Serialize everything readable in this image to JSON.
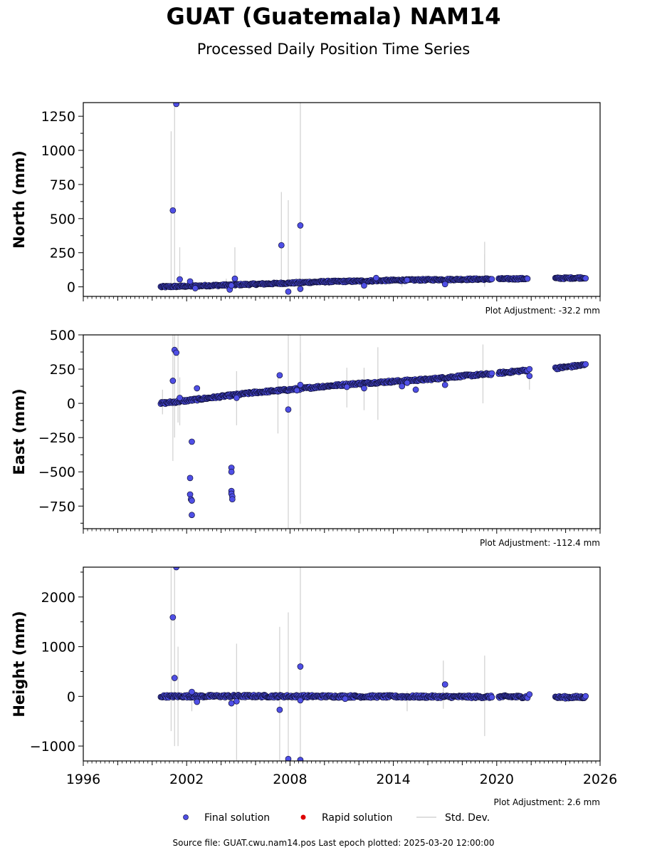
{
  "header": {
    "title": "GUAT (Guatemala) NAM14",
    "subtitle": "Processed Daily Position Time Series"
  },
  "footer": {
    "source": "Source file: GUAT.cwu.nam14.pos  Last epoch plotted: 2025-03-20 12:00:00"
  },
  "legend": {
    "final": "Final solution",
    "rapid": "Rapid solution",
    "std": "Std. Dev."
  },
  "colors": {
    "final_fill": "#4f4fe6",
    "final_edge": "#10103a",
    "rapid": "#dd0000",
    "std_dev": "#d3d3d3"
  },
  "chart_data": [
    {
      "type": "scatter",
      "ylabel": "North (mm)",
      "adjustment": "Plot Adjustment: -32.2 mm",
      "xlim": [
        1996,
        2026
      ],
      "ylim": [
        -70,
        1350
      ],
      "yticks": [
        0,
        250,
        500,
        750,
        1000,
        1250
      ],
      "ytick_labels": [
        "0",
        "250",
        "500",
        "750",
        "1000",
        "1250"
      ],
      "trend": [
        [
          2000.5,
          0
        ],
        [
          2002.0,
          5
        ],
        [
          2004.0,
          12
        ],
        [
          2006.0,
          20
        ],
        [
          2008.0,
          28
        ],
        [
          2010.0,
          38
        ],
        [
          2012.0,
          42
        ],
        [
          2014.0,
          48
        ],
        [
          2016.0,
          52
        ],
        [
          2018.0,
          55
        ],
        [
          2019.7,
          57
        ],
        [
          2020.2,
          58
        ],
        [
          2021.6,
          60
        ],
        [
          2023.3,
          62
        ],
        [
          2025.2,
          67
        ]
      ],
      "gaps": [
        [
          2019.75,
          2020.1
        ],
        [
          2021.8,
          2023.4
        ]
      ],
      "jitter": 6,
      "outliers": [
        [
          2001.2,
          560
        ],
        [
          2001.4,
          1340
        ],
        [
          2001.6,
          55
        ],
        [
          2002.2,
          40
        ],
        [
          2002.5,
          -10
        ],
        [
          2004.5,
          -20
        ],
        [
          2004.6,
          10
        ],
        [
          2004.8,
          60
        ],
        [
          2007.5,
          305
        ],
        [
          2007.9,
          -35
        ],
        [
          2008.6,
          450
        ],
        [
          2008.6,
          -15
        ],
        [
          2012.3,
          10
        ],
        [
          2013.0,
          65
        ],
        [
          2014.8,
          50
        ],
        [
          2017.0,
          20
        ]
      ],
      "errorbars": [
        [
          2001.1,
          0,
          1140
        ],
        [
          2001.3,
          0,
          1350
        ],
        [
          2001.6,
          0,
          290
        ],
        [
          2004.8,
          0,
          290
        ],
        [
          2007.5,
          0,
          695
        ],
        [
          2007.9,
          0,
          635
        ],
        [
          2008.6,
          0,
          1350
        ],
        [
          2019.3,
          0,
          330
        ],
        [
          2019.3,
          0,
          240
        ],
        [
          2004.3,
          0,
          60
        ],
        [
          2014.5,
          0,
          80
        ]
      ]
    },
    {
      "type": "scatter",
      "ylabel": "East (mm)",
      "adjustment": "Plot Adjustment: -112.4 mm",
      "xlim": [
        1996,
        2026
      ],
      "ylim": [
        -915,
        500
      ],
      "yticks": [
        -750,
        -500,
        -250,
        0,
        250,
        500
      ],
      "ytick_labels": [
        "−750",
        "−500",
        "−250",
        "0",
        "250",
        "500"
      ],
      "trend": [
        [
          2000.5,
          0
        ],
        [
          2002.0,
          20
        ],
        [
          2004.0,
          50
        ],
        [
          2006.0,
          80
        ],
        [
          2008.0,
          100
        ],
        [
          2010.0,
          125
        ],
        [
          2012.0,
          145
        ],
        [
          2014.0,
          160
        ],
        [
          2016.0,
          175
        ],
        [
          2018.0,
          200
        ],
        [
          2019.7,
          215
        ],
        [
          2020.2,
          222
        ],
        [
          2021.6,
          240
        ],
        [
          2023.3,
          255
        ],
        [
          2025.2,
          282
        ]
      ],
      "gaps": [
        [
          2019.75,
          2020.1
        ],
        [
          2021.8,
          2023.4
        ]
      ],
      "jitter": 8,
      "outliers": [
        [
          2001.2,
          165
        ],
        [
          2001.3,
          390
        ],
        [
          2001.4,
          370
        ],
        [
          2001.6,
          40
        ],
        [
          2002.3,
          -280
        ],
        [
          2002.2,
          -545
        ],
        [
          2002.2,
          -665
        ],
        [
          2002.25,
          -700
        ],
        [
          2002.3,
          -710
        ],
        [
          2002.3,
          -815
        ],
        [
          2002.6,
          110
        ],
        [
          2004.6,
          -470
        ],
        [
          2004.6,
          -500
        ],
        [
          2004.6,
          -640
        ],
        [
          2004.6,
          -660
        ],
        [
          2004.65,
          -680
        ],
        [
          2004.65,
          -700
        ],
        [
          2004.9,
          40
        ],
        [
          2007.4,
          205
        ],
        [
          2007.9,
          -45
        ],
        [
          2008.6,
          135
        ],
        [
          2008.4,
          95
        ],
        [
          2011.3,
          120
        ],
        [
          2012.3,
          110
        ],
        [
          2014.5,
          125
        ],
        [
          2014.8,
          150
        ],
        [
          2015.3,
          100
        ],
        [
          2017.0,
          135
        ],
        [
          2021.9,
          200
        ],
        [
          2021.9,
          250
        ]
      ],
      "errorbars": [
        [
          2001.2,
          -420,
          500
        ],
        [
          2001.3,
          -250,
          500
        ],
        [
          2001.5,
          -140,
          500
        ],
        [
          2001.6,
          -160,
          190
        ],
        [
          2004.9,
          -160,
          235
        ],
        [
          2007.3,
          -220,
          220
        ],
        [
          2007.9,
          -915,
          500
        ],
        [
          2008.6,
          -880,
          500
        ],
        [
          2008.6,
          -90,
          370
        ],
        [
          2011.3,
          -30,
          260
        ],
        [
          2012.3,
          -50,
          260
        ],
        [
          2013.1,
          -120,
          410
        ],
        [
          2019.2,
          0,
          430
        ],
        [
          2021.9,
          100,
          250
        ],
        [
          2000.6,
          -80,
          100
        ]
      ]
    },
    {
      "type": "scatter",
      "ylabel": "Height (mm)",
      "adjustment": "Plot Adjustment: 2.6 mm",
      "xlim": [
        1996,
        2026
      ],
      "ylim": [
        -1300,
        2600
      ],
      "yticks": [
        -1000,
        0,
        1000,
        2000
      ],
      "ytick_labels": [
        "−1000",
        "0",
        "1000",
        "2000"
      ],
      "xticks": [
        1996,
        2002,
        2008,
        2014,
        2020,
        2026
      ],
      "xtick_labels": [
        "1996",
        "2002",
        "2008",
        "2014",
        "2020",
        "2026"
      ],
      "trend": [
        [
          2000.5,
          0
        ],
        [
          2005.0,
          5
        ],
        [
          2010.0,
          0
        ],
        [
          2015.0,
          -5
        ],
        [
          2019.7,
          -10
        ],
        [
          2020.2,
          -5
        ],
        [
          2021.6,
          -10
        ],
        [
          2023.3,
          -20
        ],
        [
          2025.2,
          -15
        ]
      ],
      "gaps": [
        [
          2019.75,
          2020.1
        ],
        [
          2021.8,
          2023.4
        ]
      ],
      "jitter": 25,
      "outliers": [
        [
          2001.2,
          1590
        ],
        [
          2001.3,
          370
        ],
        [
          2001.4,
          2600
        ],
        [
          2002.3,
          90
        ],
        [
          2002.6,
          -110
        ],
        [
          2004.6,
          -140
        ],
        [
          2004.9,
          -100
        ],
        [
          2007.4,
          -270
        ],
        [
          2007.9,
          -1260
        ],
        [
          2008.6,
          600
        ],
        [
          2008.6,
          -80
        ],
        [
          2008.6,
          -1280
        ],
        [
          2017.0,
          240
        ],
        [
          2021.9,
          40
        ],
        [
          2011.2,
          -50
        ]
      ],
      "errorbars": [
        [
          2001.1,
          -700,
          2600
        ],
        [
          2001.3,
          -1000,
          2600
        ],
        [
          2001.5,
          -1000,
          1000
        ],
        [
          2002.3,
          -300,
          150
        ],
        [
          2004.9,
          -1300,
          1060
        ],
        [
          2007.4,
          -1300,
          1400
        ],
        [
          2007.9,
          -1300,
          1690
        ],
        [
          2008.6,
          -1300,
          2600
        ],
        [
          2016.9,
          -250,
          720
        ],
        [
          2019.3,
          -800,
          820
        ],
        [
          2014.8,
          -300,
          100
        ]
      ]
    }
  ]
}
